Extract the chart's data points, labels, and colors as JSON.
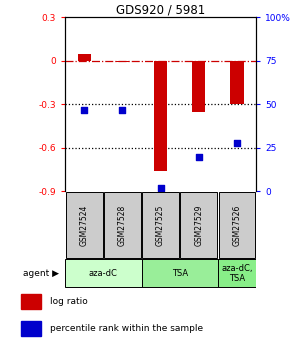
{
  "title": "GDS920 / 5981",
  "samples": [
    "GSM27524",
    "GSM27528",
    "GSM27525",
    "GSM27529",
    "GSM27526"
  ],
  "log_ratios": [
    0.05,
    -0.01,
    -0.76,
    -0.35,
    -0.3
  ],
  "percentiles": [
    47,
    47,
    2,
    20,
    28
  ],
  "ylim_left": [
    -0.9,
    0.3
  ],
  "ylim_right": [
    0,
    100
  ],
  "yticks_left": [
    0.3,
    0.0,
    -0.3,
    -0.6,
    -0.9
  ],
  "yticks_right": [
    100,
    75,
    50,
    25,
    0
  ],
  "ytick_labels_left": [
    "0.3",
    "0",
    "-0.3",
    "-0.6",
    "-0.9"
  ],
  "ytick_labels_right": [
    "100%",
    "75",
    "50",
    "25",
    "0"
  ],
  "hlines_dotted": [
    -0.3,
    -0.6
  ],
  "hline_dashdot": 0.0,
  "agent_configs": [
    [
      0.5,
      2.5,
      "aza-dC",
      "#ccffcc"
    ],
    [
      2.5,
      4.5,
      "TSA",
      "#99ee99"
    ],
    [
      4.5,
      5.5,
      "aza-dC,\nTSA",
      "#88ee88"
    ]
  ],
  "bar_color": "#cc0000",
  "dot_color": "#0000cc",
  "bar_width": 0.35,
  "dot_size": 18,
  "legend_red": "log ratio",
  "legend_blue": "percentile rank within the sample",
  "background_color": "#ffffff",
  "plot_bg": "#ffffff",
  "label_box_color": "#cccccc"
}
